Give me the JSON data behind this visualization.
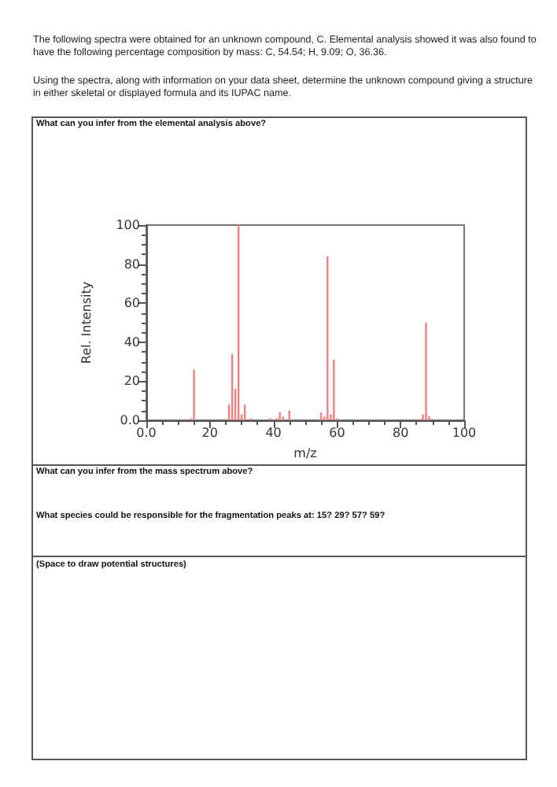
{
  "chart_data": {
    "type": "bar",
    "xlabel": "m/z",
    "ylabel": "Rel. Intensity",
    "x": [
      14,
      15,
      26,
      27,
      28,
      29,
      30,
      31,
      33,
      39,
      41,
      42,
      43,
      45,
      55,
      56,
      57,
      58,
      59,
      60,
      87,
      88,
      89
    ],
    "values": [
      1,
      26,
      8,
      34,
      16,
      100,
      3,
      8,
      1,
      1,
      1,
      4,
      2,
      5,
      4,
      2,
      84,
      3,
      31,
      1,
      3,
      50,
      2
    ],
    "color": "#f08080",
    "xlim": [
      0,
      100
    ],
    "xticks": [
      {
        "value": 0,
        "label": "0.0"
      },
      20,
      40,
      60,
      80,
      100
    ],
    "ylim": [
      0,
      100
    ],
    "yticks": [
      {
        "value": 0,
        "label": "0.0"
      },
      20,
      40,
      60,
      80,
      100
    ],
    "grid": false,
    "annotations": [
      "The following spectra were obtained for an unknown compound, C. Elemental analysis showed it was also found to have the following percentage composition by mass: C, 54.54; H, 9.09; O, 36.36.",
      "Using the spectra, along with information on your data sheet, determine the unknown compound giving a structure in either skeletal or displayed formula and its IUPAC name.",
      "What can you infer from the elemental analysis above?",
      "What can you infer from the mass spectrum above?",
      "What species could be responsible for the fragmentation peaks at: 15?  29?  57?  59?",
      "(Space to draw potential structures)"
    ]
  }
}
